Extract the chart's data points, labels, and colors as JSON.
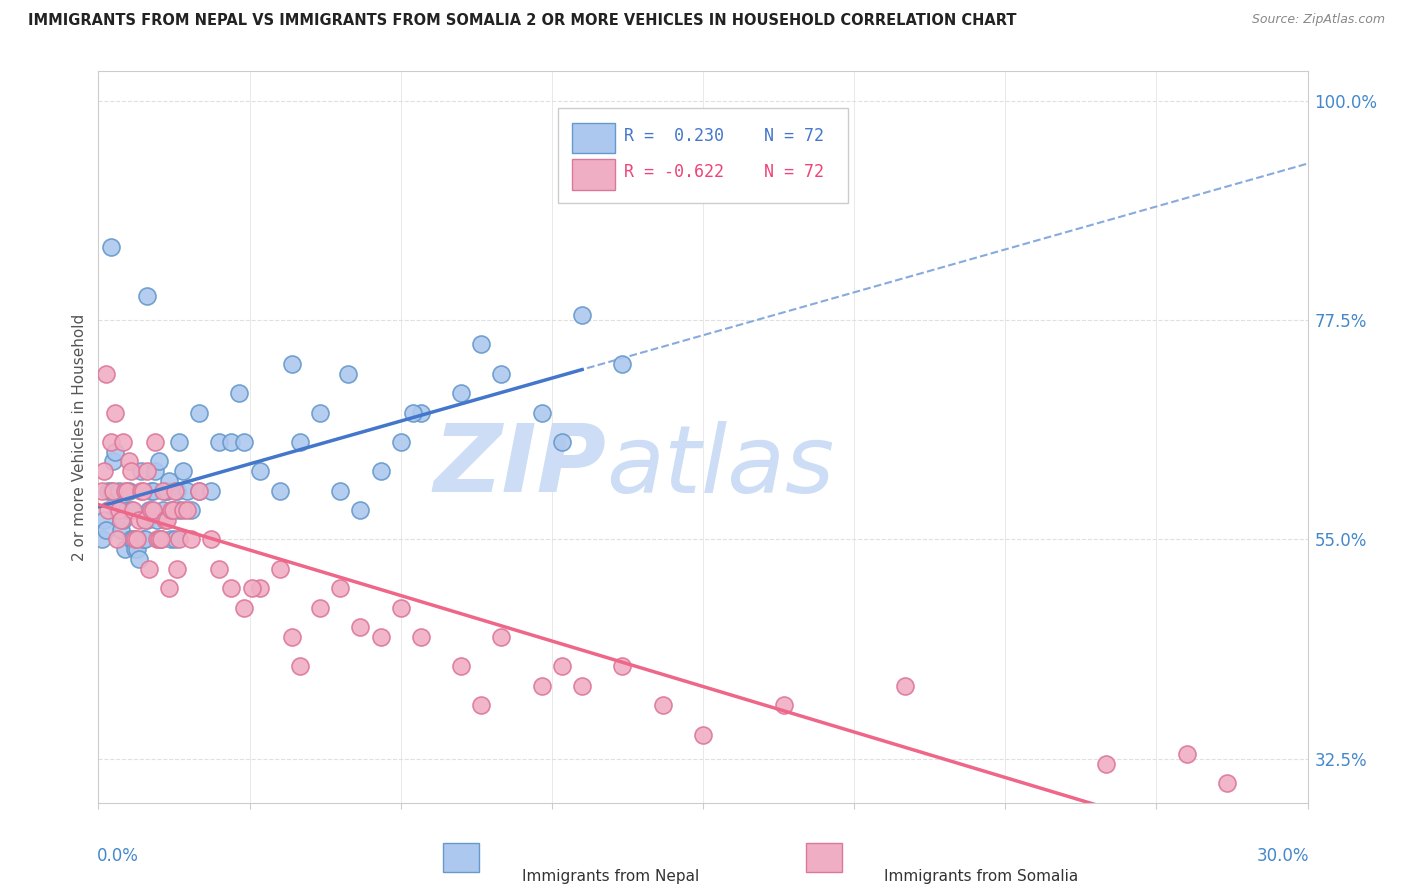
{
  "title": "IMMIGRANTS FROM NEPAL VS IMMIGRANTS FROM SOMALIA 2 OR MORE VEHICLES IN HOUSEHOLD CORRELATION CHART",
  "source": "Source: ZipAtlas.com",
  "ylabel": "2 or more Vehicles in Household",
  "xlim": [
    0.0,
    30.0
  ],
  "ylim": [
    28.0,
    103.0
  ],
  "ytick_vals": [
    32.5,
    55.0,
    77.5,
    100.0
  ],
  "nepal_R": 0.23,
  "nepal_N": 72,
  "somalia_R": -0.622,
  "somalia_N": 72,
  "nepal_color": "#adc8ee",
  "nepal_edge_color": "#6699cc",
  "somalia_color": "#f0aec4",
  "somalia_edge_color": "#dd7799",
  "nepal_trend_color": "#4477cc",
  "somalia_trend_color": "#ee6688",
  "blue_dash_color": "#88aadd",
  "background_color": "#ffffff",
  "grid_color": "#e0e0e0",
  "watermark_zip": "ZIP",
  "watermark_atlas": "atlas",
  "watermark_color": "#ccddf5",
  "nepal_x": [
    0.1,
    0.15,
    0.2,
    0.25,
    0.3,
    0.35,
    0.4,
    0.45,
    0.5,
    0.55,
    0.6,
    0.65,
    0.7,
    0.75,
    0.8,
    0.85,
    0.9,
    0.95,
    1.0,
    1.05,
    1.1,
    1.15,
    1.2,
    1.25,
    1.3,
    1.35,
    1.4,
    1.45,
    1.5,
    1.55,
    1.6,
    1.65,
    1.7,
    1.75,
    1.8,
    1.85,
    1.9,
    1.95,
    2.0,
    2.1,
    2.2,
    2.3,
    2.5,
    2.8,
    3.0,
    3.3,
    3.6,
    4.0,
    4.5,
    5.0,
    5.5,
    6.0,
    6.5,
    7.0,
    7.5,
    8.0,
    9.0,
    10.0,
    11.0,
    11.5,
    13.0,
    1.2,
    2.0,
    2.5,
    3.5,
    4.8,
    6.2,
    7.8,
    9.5,
    12.0,
    0.3,
    0.8
  ],
  "nepal_y": [
    55,
    57,
    56,
    60,
    60,
    63,
    64,
    58,
    60,
    56,
    57,
    54,
    58,
    60,
    55,
    55,
    54,
    54,
    53,
    62,
    55,
    55,
    57,
    58,
    60,
    60,
    62,
    57,
    63,
    55,
    58,
    60,
    60,
    61,
    55,
    58,
    55,
    60,
    58,
    62,
    60,
    58,
    60,
    60,
    65,
    65,
    65,
    62,
    60,
    65,
    68,
    60,
    58,
    62,
    65,
    68,
    70,
    72,
    68,
    65,
    73,
    80,
    65,
    68,
    70,
    73,
    72,
    68,
    75,
    78,
    85,
    58
  ],
  "somalia_x": [
    0.1,
    0.15,
    0.2,
    0.25,
    0.3,
    0.35,
    0.4,
    0.45,
    0.5,
    0.55,
    0.6,
    0.65,
    0.7,
    0.75,
    0.8,
    0.85,
    0.9,
    0.95,
    1.0,
    1.05,
    1.1,
    1.15,
    1.2,
    1.25,
    1.3,
    1.35,
    1.4,
    1.45,
    1.5,
    1.55,
    1.6,
    1.65,
    1.7,
    1.75,
    1.8,
    1.85,
    1.9,
    1.95,
    2.0,
    2.1,
    2.2,
    2.3,
    2.5,
    2.8,
    3.0,
    3.3,
    3.6,
    4.0,
    4.5,
    5.0,
    5.5,
    6.0,
    7.0,
    8.0,
    9.0,
    10.0,
    11.0,
    12.0,
    13.0,
    14.0,
    15.0,
    17.0,
    20.0,
    25.0,
    27.0,
    28.0,
    6.5,
    7.5,
    9.5,
    11.5,
    3.8,
    4.8
  ],
  "somalia_y": [
    60,
    62,
    72,
    58,
    65,
    60,
    68,
    55,
    58,
    57,
    65,
    60,
    60,
    63,
    62,
    58,
    55,
    55,
    57,
    60,
    60,
    57,
    62,
    52,
    58,
    58,
    65,
    55,
    55,
    55,
    60,
    57,
    57,
    50,
    58,
    58,
    60,
    52,
    55,
    58,
    58,
    55,
    60,
    55,
    52,
    50,
    48,
    50,
    52,
    42,
    48,
    50,
    45,
    45,
    42,
    45,
    40,
    40,
    42,
    38,
    35,
    38,
    40,
    32,
    33,
    30,
    46,
    48,
    38,
    42,
    50,
    45
  ]
}
